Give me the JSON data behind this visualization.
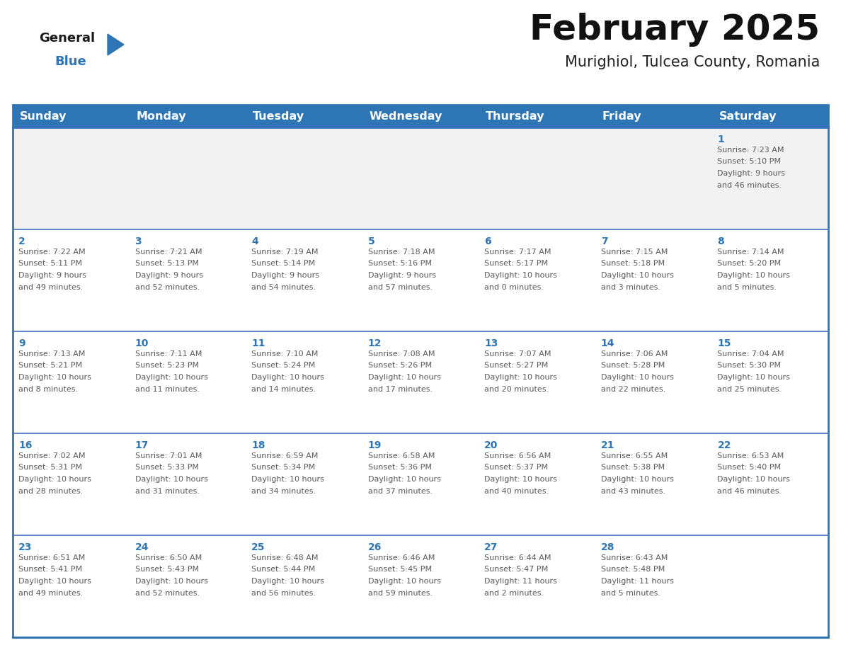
{
  "title": "February 2025",
  "subtitle": "Murighiol, Tulcea County, Romania",
  "header_color": "#2E75B6",
  "header_text_color": "#FFFFFF",
  "border_color": "#2E75B6",
  "row_separator_color": "#4472C4",
  "cell_bg_odd": "#F2F2F2",
  "cell_bg_even": "#FFFFFF",
  "text_color_dark": "#595959",
  "day_num_color": "#2E75B6",
  "logo_general_color": "#1a1a1a",
  "logo_blue_color": "#2E75B6",
  "logo_triangle_color": "#2E75B6",
  "day_headers": [
    "Sunday",
    "Monday",
    "Tuesday",
    "Wednesday",
    "Thursday",
    "Friday",
    "Saturday"
  ],
  "title_fontsize": 36,
  "subtitle_fontsize": 15,
  "header_fontsize": 11.5,
  "day_num_fontsize": 10,
  "cell_text_fontsize": 8,
  "logo_fontsize": 13,
  "days": [
    {
      "day": 1,
      "col": 6,
      "row": 0,
      "sunrise": "7:23 AM",
      "sunset": "5:10 PM",
      "daylight_h": "9 hours",
      "daylight_m": "and 46 minutes."
    },
    {
      "day": 2,
      "col": 0,
      "row": 1,
      "sunrise": "7:22 AM",
      "sunset": "5:11 PM",
      "daylight_h": "9 hours",
      "daylight_m": "and 49 minutes."
    },
    {
      "day": 3,
      "col": 1,
      "row": 1,
      "sunrise": "7:21 AM",
      "sunset": "5:13 PM",
      "daylight_h": "9 hours",
      "daylight_m": "and 52 minutes."
    },
    {
      "day": 4,
      "col": 2,
      "row": 1,
      "sunrise": "7:19 AM",
      "sunset": "5:14 PM",
      "daylight_h": "9 hours",
      "daylight_m": "and 54 minutes."
    },
    {
      "day": 5,
      "col": 3,
      "row": 1,
      "sunrise": "7:18 AM",
      "sunset": "5:16 PM",
      "daylight_h": "9 hours",
      "daylight_m": "and 57 minutes."
    },
    {
      "day": 6,
      "col": 4,
      "row": 1,
      "sunrise": "7:17 AM",
      "sunset": "5:17 PM",
      "daylight_h": "10 hours",
      "daylight_m": "and 0 minutes."
    },
    {
      "day": 7,
      "col": 5,
      "row": 1,
      "sunrise": "7:15 AM",
      "sunset": "5:18 PM",
      "daylight_h": "10 hours",
      "daylight_m": "and 3 minutes."
    },
    {
      "day": 8,
      "col": 6,
      "row": 1,
      "sunrise": "7:14 AM",
      "sunset": "5:20 PM",
      "daylight_h": "10 hours",
      "daylight_m": "and 5 minutes."
    },
    {
      "day": 9,
      "col": 0,
      "row": 2,
      "sunrise": "7:13 AM",
      "sunset": "5:21 PM",
      "daylight_h": "10 hours",
      "daylight_m": "and 8 minutes."
    },
    {
      "day": 10,
      "col": 1,
      "row": 2,
      "sunrise": "7:11 AM",
      "sunset": "5:23 PM",
      "daylight_h": "10 hours",
      "daylight_m": "and 11 minutes."
    },
    {
      "day": 11,
      "col": 2,
      "row": 2,
      "sunrise": "7:10 AM",
      "sunset": "5:24 PM",
      "daylight_h": "10 hours",
      "daylight_m": "and 14 minutes."
    },
    {
      "day": 12,
      "col": 3,
      "row": 2,
      "sunrise": "7:08 AM",
      "sunset": "5:26 PM",
      "daylight_h": "10 hours",
      "daylight_m": "and 17 minutes."
    },
    {
      "day": 13,
      "col": 4,
      "row": 2,
      "sunrise": "7:07 AM",
      "sunset": "5:27 PM",
      "daylight_h": "10 hours",
      "daylight_m": "and 20 minutes."
    },
    {
      "day": 14,
      "col": 5,
      "row": 2,
      "sunrise": "7:06 AM",
      "sunset": "5:28 PM",
      "daylight_h": "10 hours",
      "daylight_m": "and 22 minutes."
    },
    {
      "day": 15,
      "col": 6,
      "row": 2,
      "sunrise": "7:04 AM",
      "sunset": "5:30 PM",
      "daylight_h": "10 hours",
      "daylight_m": "and 25 minutes."
    },
    {
      "day": 16,
      "col": 0,
      "row": 3,
      "sunrise": "7:02 AM",
      "sunset": "5:31 PM",
      "daylight_h": "10 hours",
      "daylight_m": "and 28 minutes."
    },
    {
      "day": 17,
      "col": 1,
      "row": 3,
      "sunrise": "7:01 AM",
      "sunset": "5:33 PM",
      "daylight_h": "10 hours",
      "daylight_m": "and 31 minutes."
    },
    {
      "day": 18,
      "col": 2,
      "row": 3,
      "sunrise": "6:59 AM",
      "sunset": "5:34 PM",
      "daylight_h": "10 hours",
      "daylight_m": "and 34 minutes."
    },
    {
      "day": 19,
      "col": 3,
      "row": 3,
      "sunrise": "6:58 AM",
      "sunset": "5:36 PM",
      "daylight_h": "10 hours",
      "daylight_m": "and 37 minutes."
    },
    {
      "day": 20,
      "col": 4,
      "row": 3,
      "sunrise": "6:56 AM",
      "sunset": "5:37 PM",
      "daylight_h": "10 hours",
      "daylight_m": "and 40 minutes."
    },
    {
      "day": 21,
      "col": 5,
      "row": 3,
      "sunrise": "6:55 AM",
      "sunset": "5:38 PM",
      "daylight_h": "10 hours",
      "daylight_m": "and 43 minutes."
    },
    {
      "day": 22,
      "col": 6,
      "row": 3,
      "sunrise": "6:53 AM",
      "sunset": "5:40 PM",
      "daylight_h": "10 hours",
      "daylight_m": "and 46 minutes."
    },
    {
      "day": 23,
      "col": 0,
      "row": 4,
      "sunrise": "6:51 AM",
      "sunset": "5:41 PM",
      "daylight_h": "10 hours",
      "daylight_m": "and 49 minutes."
    },
    {
      "day": 24,
      "col": 1,
      "row": 4,
      "sunrise": "6:50 AM",
      "sunset": "5:43 PM",
      "daylight_h": "10 hours",
      "daylight_m": "and 52 minutes."
    },
    {
      "day": 25,
      "col": 2,
      "row": 4,
      "sunrise": "6:48 AM",
      "sunset": "5:44 PM",
      "daylight_h": "10 hours",
      "daylight_m": "and 56 minutes."
    },
    {
      "day": 26,
      "col": 3,
      "row": 4,
      "sunrise": "6:46 AM",
      "sunset": "5:45 PM",
      "daylight_h": "10 hours",
      "daylight_m": "and 59 minutes."
    },
    {
      "day": 27,
      "col": 4,
      "row": 4,
      "sunrise": "6:44 AM",
      "sunset": "5:47 PM",
      "daylight_h": "11 hours",
      "daylight_m": "and 2 minutes."
    },
    {
      "day": 28,
      "col": 5,
      "row": 4,
      "sunrise": "6:43 AM",
      "sunset": "5:48 PM",
      "daylight_h": "11 hours",
      "daylight_m": "and 5 minutes."
    }
  ]
}
